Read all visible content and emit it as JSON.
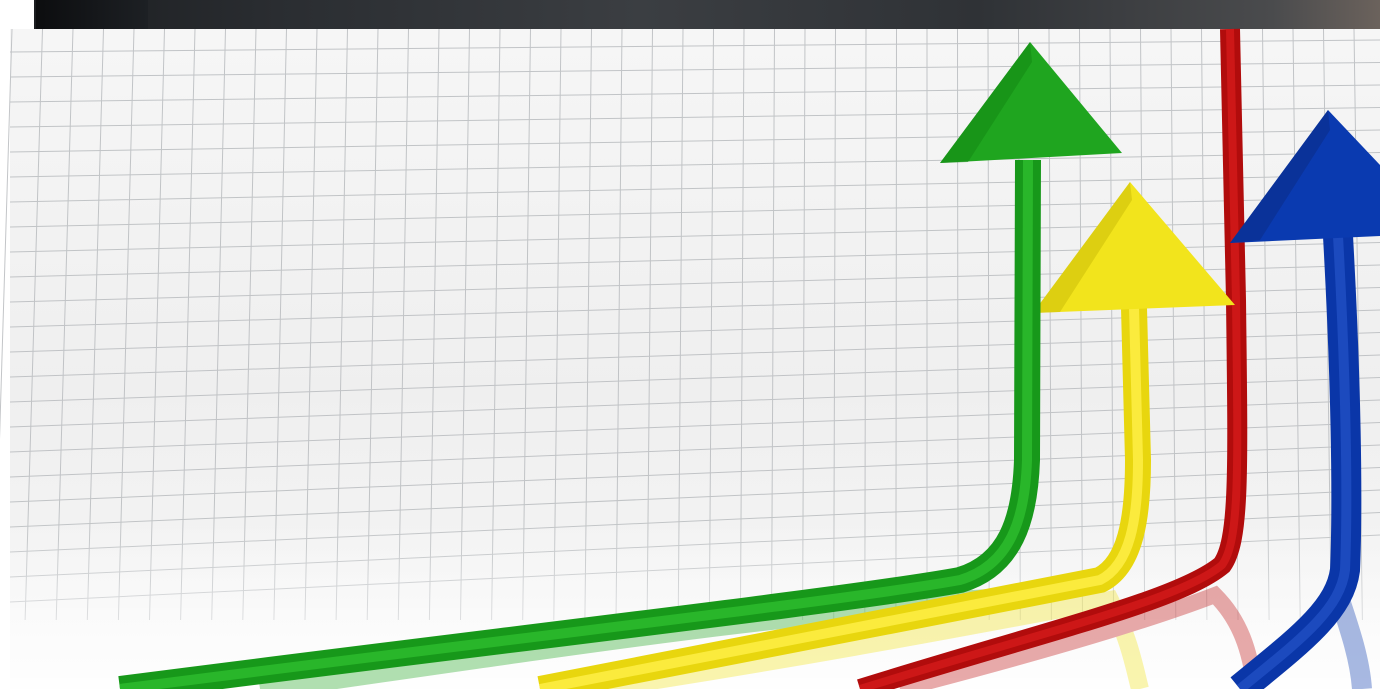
{
  "image": {
    "subject": "growth arrows",
    "arrows": [
      {
        "name": "green-arrow",
        "color": "#1fa51f",
        "dark": "#148a14"
      },
      {
        "name": "yellow-arrow",
        "color": "#f2e41c",
        "dark": "#cdbf0a"
      },
      {
        "name": "red-arrow",
        "color": "#c01010",
        "dark": "#8f0a0a"
      },
      {
        "name": "blue-arrow",
        "color": "#0a3ab0",
        "dark": "#082c86"
      }
    ],
    "grid_color": "#b9bcbf",
    "strip_color": "#2a2d31"
  }
}
